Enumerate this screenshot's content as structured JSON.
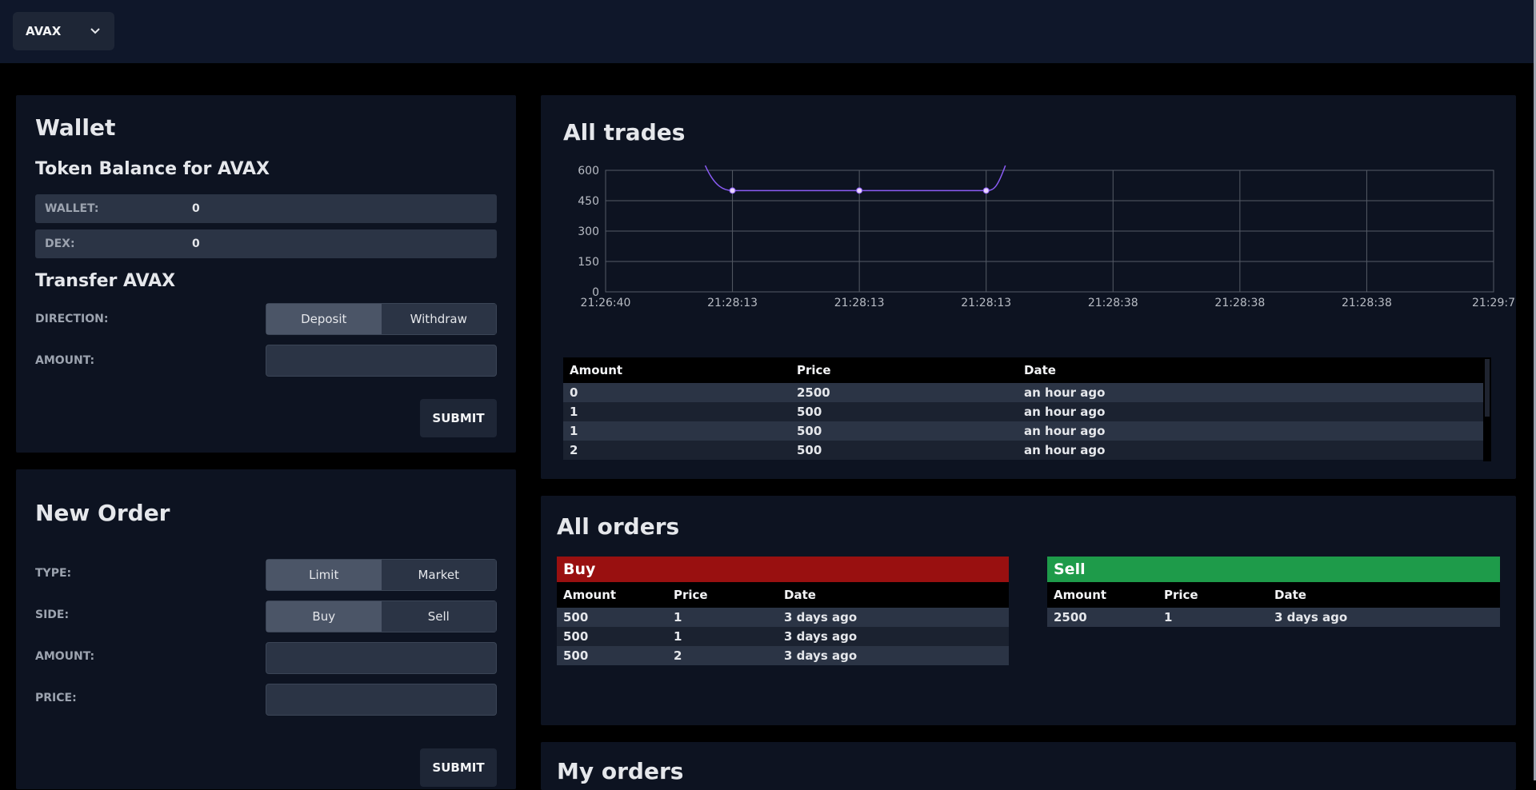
{
  "topbar": {
    "token_label": "AVAX"
  },
  "wallet": {
    "title": "Wallet",
    "balance_heading": "Token Balance for AVAX",
    "rows": [
      {
        "label": "WALLET:",
        "value": "0"
      },
      {
        "label": "DEX:",
        "value": "0"
      }
    ],
    "transfer_heading": "Transfer AVAX",
    "direction_label": "DIRECTION:",
    "direction_options": [
      "Deposit",
      "Withdraw"
    ],
    "amount_label": "AMOUNT:",
    "submit_label": "SUBMIT"
  },
  "new_order": {
    "title": "New Order",
    "type_label": "TYPE:",
    "type_options": [
      "Limit",
      "Market"
    ],
    "side_label": "SIDE:",
    "side_options": [
      "Buy",
      "Sell"
    ],
    "amount_label": "AMOUNT:",
    "price_label": "PRICE:",
    "submit_label": "SUBMIT"
  },
  "all_trades": {
    "title": "All trades",
    "table": {
      "headers": [
        "Amount",
        "Price",
        "Date"
      ],
      "rows": [
        [
          "0",
          "2500",
          "an hour ago"
        ],
        [
          "1",
          "500",
          "an hour ago"
        ],
        [
          "1",
          "500",
          "an hour ago"
        ],
        [
          "2",
          "500",
          "an hour ago"
        ]
      ]
    }
  },
  "chart_data": {
    "type": "line",
    "x_ticks": [
      "21:26:40",
      "21:28:13",
      "21:28:13",
      "21:28:13",
      "21:28:38",
      "21:28:38",
      "21:28:38",
      "21:29:7"
    ],
    "y_ticks": [
      0,
      150,
      300,
      450,
      600
    ],
    "ylim": [
      0,
      600
    ],
    "points": [
      {
        "x": "21:28:13",
        "y": 500
      },
      {
        "x": "21:28:13",
        "y": 500
      },
      {
        "x": "21:28:13",
        "y": 500
      }
    ],
    "grid": true,
    "line_color": "#8b5cf6"
  },
  "all_orders": {
    "title": "All orders",
    "buy": {
      "title": "Buy",
      "color": "#991010",
      "headers": [
        "Amount",
        "Price",
        "Date"
      ],
      "rows": [
        [
          "500",
          "1",
          "3 days ago"
        ],
        [
          "500",
          "1",
          "3 days ago"
        ],
        [
          "500",
          "2",
          "3 days ago"
        ]
      ]
    },
    "sell": {
      "title": "Sell",
      "color": "#1e9b4a",
      "headers": [
        "Amount",
        "Price",
        "Date"
      ],
      "rows": [
        [
          "2500",
          "1",
          "3 days ago"
        ]
      ]
    }
  },
  "my_orders": {
    "title": "My orders"
  }
}
